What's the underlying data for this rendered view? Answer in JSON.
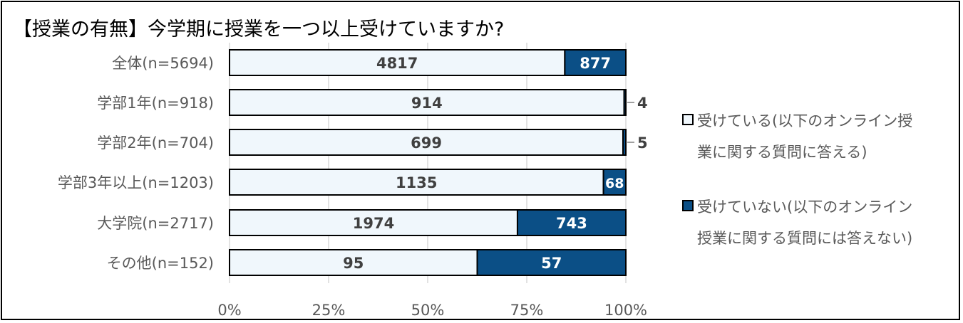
{
  "chart_data": {
    "type": "bar",
    "orientation": "horizontal",
    "stacked": "percent",
    "title": "【授業の有無】今学期に授業を一つ以上受けていますか?",
    "categories": [
      "全体(n=5694)",
      "学部1年(n=918)",
      "学部2年(n=704)",
      "学部3年以上(n=1203)",
      "大学院(n=2717)",
      "その他(n=152)"
    ],
    "series": [
      {
        "name": "受けている(以下のオンライン授業に関する質問に答える)",
        "legend_lines": [
          "受けている(以下のオンライン授",
          "業に関する質問に答える)"
        ],
        "values": [
          4817,
          914,
          699,
          1135,
          1974,
          95
        ],
        "color": "#F0F7FC"
      },
      {
        "name": "受けていない(以下のオンライン授業に関する質問には答えない)",
        "legend_lines": [
          "受けていない(以下のオンライン",
          "授業に関する質問には答えない)"
        ],
        "values": [
          877,
          4,
          5,
          68,
          743,
          57
        ],
        "color": "#0B4F86"
      }
    ],
    "xticks": [
      "0%",
      "25%",
      "50%",
      "75%",
      "100%"
    ],
    "xlim": [
      0,
      100
    ],
    "grid": true,
    "legend": "right"
  }
}
